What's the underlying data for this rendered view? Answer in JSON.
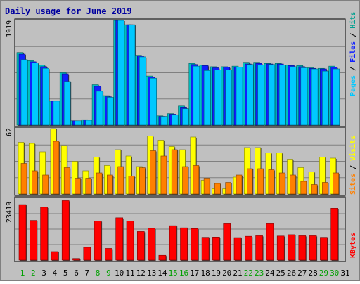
{
  "chart_data": [
    {
      "type": "bar",
      "title": "Daily usage for June 2019",
      "days": [
        "1",
        "2",
        "3",
        "4",
        "5",
        "6",
        "7",
        "8",
        "9",
        "10",
        "11",
        "12",
        "13",
        "14",
        "15",
        "16",
        "17",
        "18",
        "19",
        "20",
        "21",
        "22",
        "23",
        "24",
        "25",
        "26",
        "27",
        "28",
        "29",
        "30",
        "31"
      ],
      "weekend_days": [
        "1",
        "2",
        "8",
        "9",
        "15",
        "16",
        "22",
        "23",
        "29",
        "30"
      ],
      "ymax_label": "1919",
      "ylabel_parts": [
        "Pages",
        "Files",
        "Hits"
      ],
      "ymax": 1919,
      "series": [
        {
          "name": "Hits",
          "color": "#00c0c0",
          "values": [
            1330,
            1180,
            1100,
            440,
            960,
            80,
            100,
            740,
            540,
            1919,
            1840,
            1280,
            900,
            170,
            210,
            350,
            1130,
            1100,
            1070,
            1070,
            1080,
            1150,
            1150,
            1130,
            1130,
            1100,
            1090,
            1050,
            1040,
            1080,
            0
          ]
        },
        {
          "name": "Files",
          "color": "#1020ff",
          "values": [
            1300,
            1160,
            1070,
            440,
            940,
            80,
            95,
            710,
            520,
            1919,
            1840,
            1270,
            880,
            160,
            200,
            330,
            1110,
            1090,
            1050,
            1060,
            1060,
            1120,
            1130,
            1120,
            1120,
            1090,
            1070,
            1040,
            1030,
            1060,
            0
          ]
        },
        {
          "name": "Pages",
          "color": "#00c8ff",
          "values": [
            1200,
            1140,
            1040,
            440,
            800,
            80,
            90,
            620,
            510,
            1919,
            1840,
            1250,
            860,
            160,
            190,
            300,
            1080,
            1000,
            1010,
            1010,
            1060,
            1110,
            1100,
            1110,
            1100,
            1070,
            1050,
            1030,
            990,
            1030,
            0
          ]
        }
      ]
    },
    {
      "type": "bar",
      "ymax_label": "62",
      "ylabel_parts": [
        "Sites",
        "Visits"
      ],
      "ymax": 62,
      "series": [
        {
          "name": "Visits",
          "color": "#ffff00",
          "values": [
            49,
            48,
            40,
            62,
            46,
            31,
            22,
            35,
            27,
            42,
            36,
            26,
            55,
            51,
            45,
            42,
            54,
            13,
            5,
            5,
            16,
            44,
            44,
            39,
            39,
            33,
            25,
            21,
            35,
            34,
            0
          ]
        },
        {
          "name": "Sites",
          "color": "#ff8000",
          "values": [
            29,
            22,
            18,
            50,
            25,
            15,
            15,
            20,
            18,
            26,
            17,
            25,
            41,
            36,
            42,
            26,
            27,
            15,
            10,
            11,
            18,
            24,
            24,
            23,
            20,
            18,
            12,
            9,
            11,
            20,
            0
          ]
        }
      ]
    },
    {
      "type": "bar",
      "ymax_label": "23419",
      "ylabel_parts": [
        "KBytes"
      ],
      "ymax": 23419,
      "series": [
        {
          "name": "KBytes",
          "color": "#ff0000",
          "values": [
            21000,
            15000,
            20000,
            3200,
            22500,
            600,
            4800,
            14800,
            4400,
            16000,
            14800,
            10800,
            12000,
            1800,
            13000,
            12200,
            11900,
            8600,
            8700,
            14000,
            8500,
            9000,
            9200,
            14000,
            9100,
            9600,
            9200,
            9200,
            8600,
            19600,
            0
          ]
        }
      ]
    }
  ],
  "colors": {
    "weekend_label": "#00a000",
    "weekday_label": "#000000",
    "grid": "#808080",
    "plot_bg": "#c0c0c0"
  }
}
